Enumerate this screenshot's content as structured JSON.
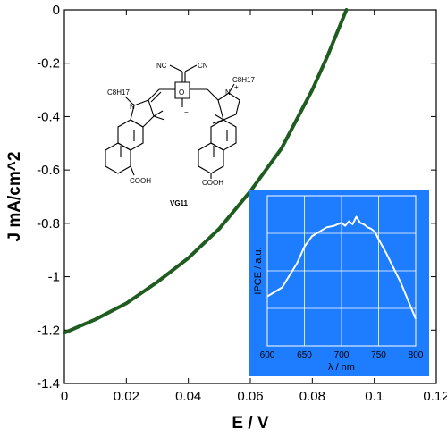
{
  "chart_data": [
    {
      "type": "line",
      "xlabel": "E / V",
      "ylabel": "J mA/cm^2",
      "xlim": [
        0,
        0.12
      ],
      "ylim": [
        -1.4,
        0
      ],
      "x_ticks": [
        "0",
        "0.02",
        "0.04",
        "0.06",
        "0.08",
        "0.1",
        "0.12"
      ],
      "y_ticks": [
        "0",
        "-0.2",
        "-0.4",
        "-0.6",
        "-0.8",
        "-1",
        "-1.2",
        "-1.4"
      ],
      "grid": false,
      "series": [
        {
          "color": "#1f5c1f",
          "x": [
            0,
            0.01,
            0.02,
            0.03,
            0.04,
            0.05,
            0.06,
            0.07,
            0.08,
            0.085,
            0.091
          ],
          "y": [
            -1.21,
            -1.16,
            -1.1,
            -1.02,
            -0.93,
            -0.82,
            -0.68,
            -0.52,
            -0.3,
            -0.17,
            0
          ]
        }
      ]
    },
    {
      "type": "line",
      "xlabel": "λ / nm",
      "ylabel": "IPCE / a.u.",
      "xlim": [
        600,
        800
      ],
      "x_ticks": [
        "600",
        "650",
        "700",
        "750",
        "800"
      ],
      "grid": true,
      "background": "#1e7cff",
      "series": [
        {
          "color": "#ffffff",
          "x": [
            600,
            620,
            640,
            650,
            660,
            670,
            680,
            690,
            700,
            705,
            710,
            715,
            720,
            725,
            730,
            735,
            740,
            745,
            750,
            760,
            770,
            780,
            790,
            800
          ],
          "y": [
            0.33,
            0.39,
            0.55,
            0.66,
            0.73,
            0.76,
            0.79,
            0.8,
            0.82,
            0.8,
            0.83,
            0.81,
            0.86,
            0.82,
            0.81,
            0.79,
            0.78,
            0.76,
            0.71,
            0.62,
            0.52,
            0.42,
            0.3,
            0.18
          ]
        }
      ]
    }
  ],
  "molecule": {
    "name": "VG11",
    "labels": {
      "cn_left": "NC",
      "cn_right": "CN",
      "alkyl_left": "C8H17",
      "alkyl_right": "C8H17",
      "cooh_left": "COOH",
      "cooh_right": "COOH",
      "nitrogen_left": "N",
      "nitrogen_right": "N",
      "oxygen": "O",
      "anion": "−",
      "cation": "+"
    }
  }
}
